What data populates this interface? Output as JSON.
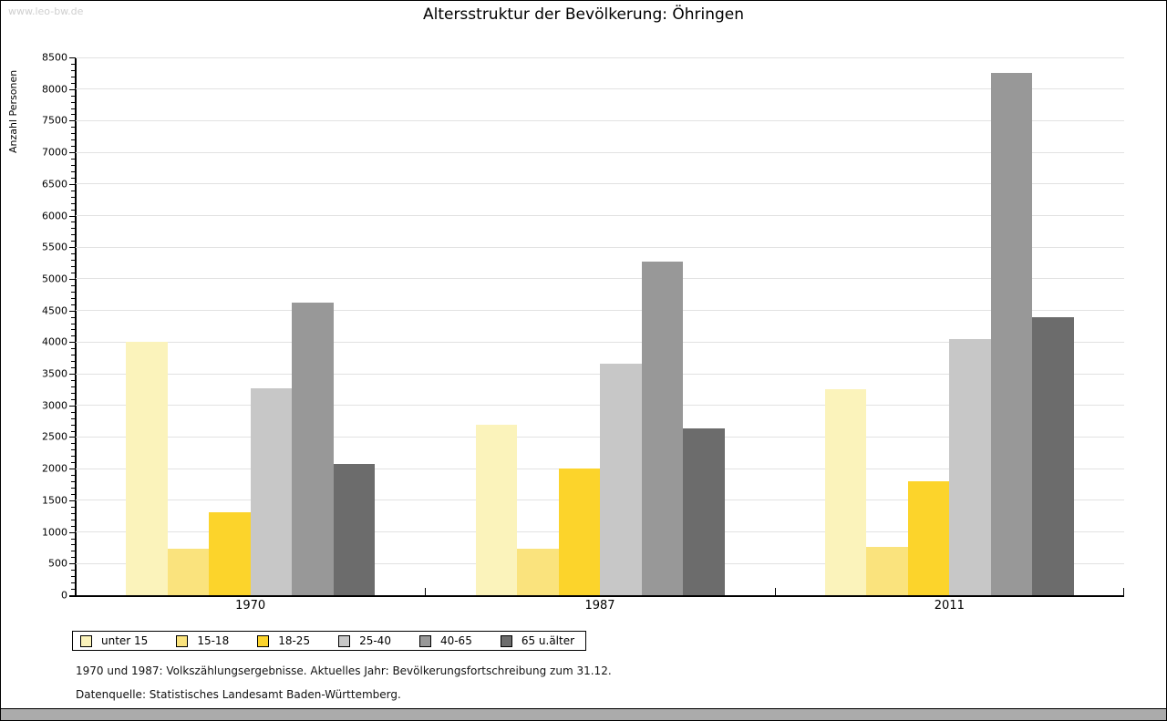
{
  "watermark": "www.leo-bw.de",
  "chart_data": {
    "type": "bar",
    "title": "Altersstruktur der Bevölkerung: Öhringen",
    "xlabel": "",
    "ylabel": "Anzahl Personen",
    "ylim": [
      0,
      8500
    ],
    "ytick_step": 500,
    "minor_tick_step": 100,
    "grid": true,
    "legend_position": "bottom-left",
    "categories": [
      "1970",
      "1987",
      "2011"
    ],
    "series": [
      {
        "name": "unter 15",
        "color": "#FBF3BB",
        "values": [
          4000,
          2690,
          3260
        ]
      },
      {
        "name": "15-18",
        "color": "#FAE37D",
        "values": [
          730,
          740,
          760
        ]
      },
      {
        "name": "18-25",
        "color": "#FCD42B",
        "values": [
          1310,
          2000,
          1800
        ]
      },
      {
        "name": "25-40",
        "color": "#C7C7C7",
        "values": [
          3270,
          3660,
          4050
        ]
      },
      {
        "name": "40-65",
        "color": "#989898",
        "values": [
          4620,
          5270,
          8250
        ]
      },
      {
        "name": "65 u.älter",
        "color": "#6C6C6C",
        "values": [
          2070,
          2630,
          4400
        ]
      }
    ]
  },
  "footnotes": [
    "1970 und 1987: Volkszählungsergebnisse. Aktuelles Jahr: Bevölkerungsfortschreibung zum 31.12.",
    "Datenquelle: Statistisches Landesamt Baden-Württemberg."
  ]
}
